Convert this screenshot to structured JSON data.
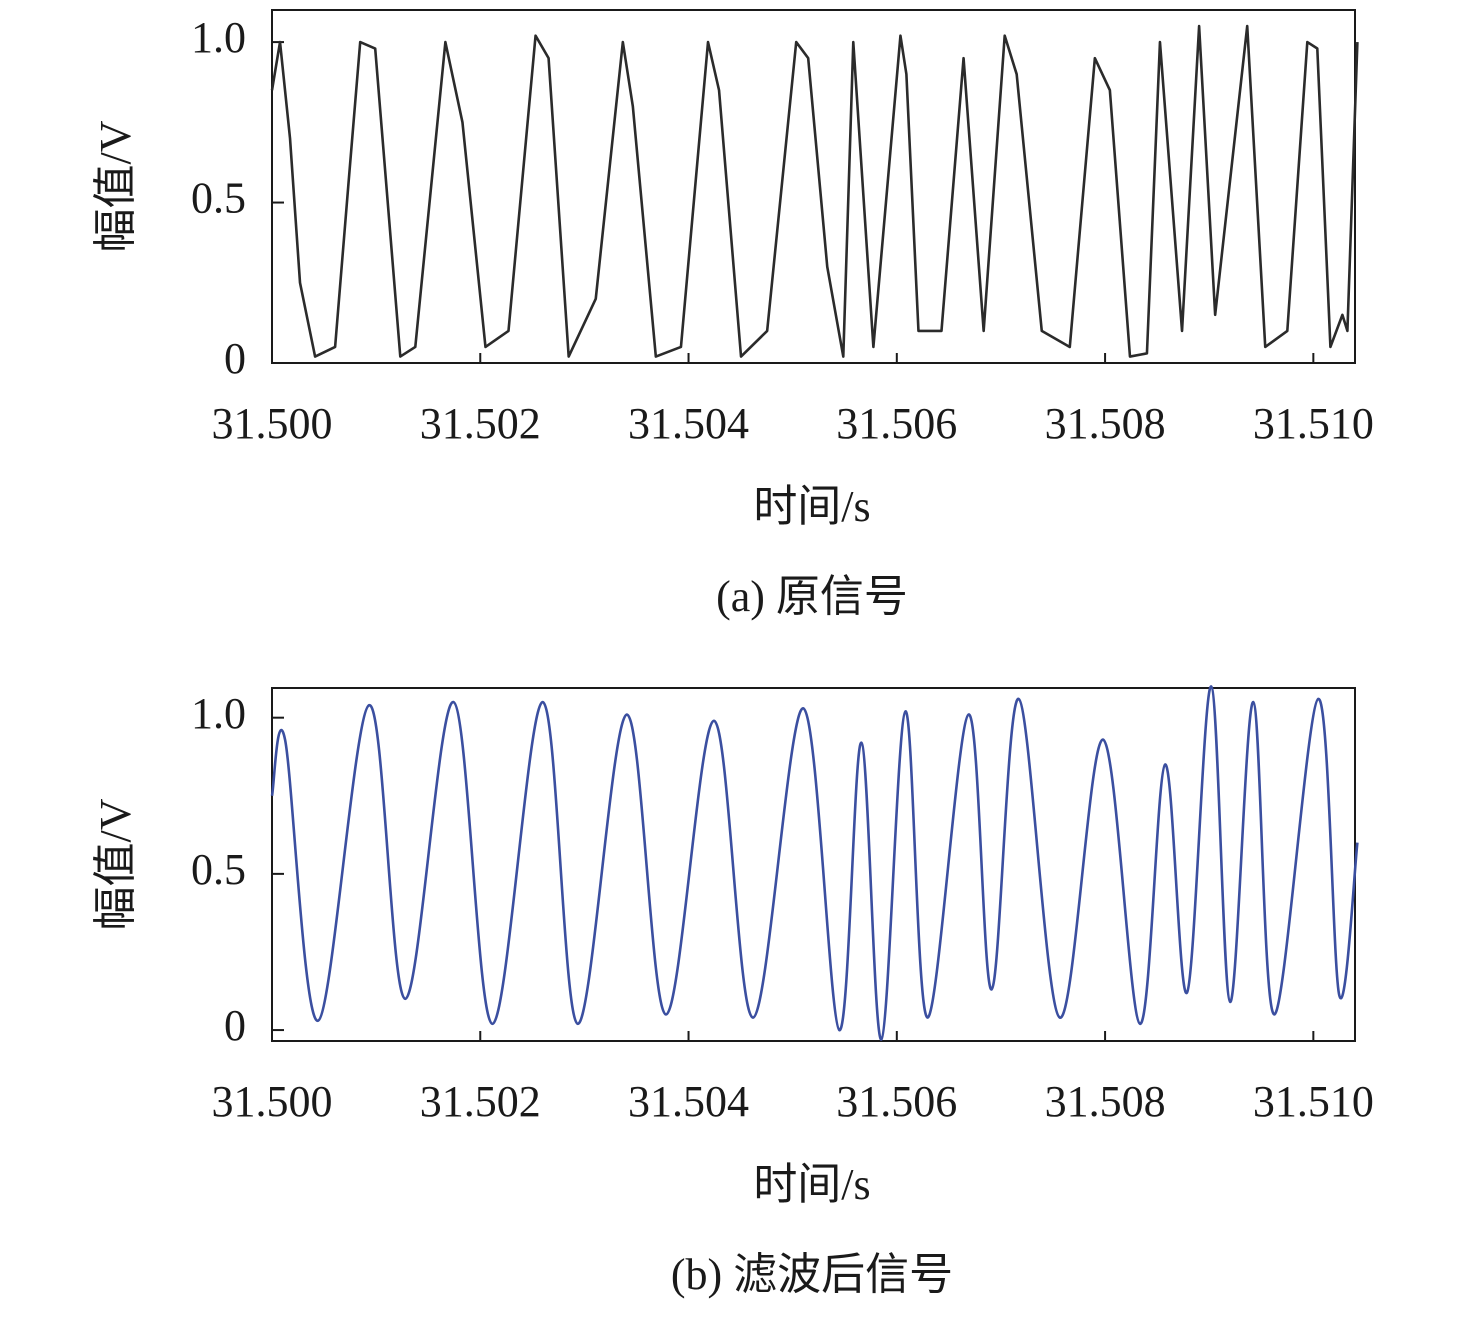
{
  "chart_data": [
    {
      "type": "line",
      "caption": "(a) 原信号",
      "xlabel": "时间/s",
      "ylabel": "幅值/V",
      "color": "#2b2b2b",
      "x": [
        31.5,
        31.500077,
        31.500173,
        31.500269,
        31.500414,
        31.500606,
        31.500732,
        31.500847,
        31.500991,
        31.501232,
        31.501376,
        31.501665,
        31.501829,
        31.50205,
        31.502271,
        31.502531,
        31.502656,
        31.502849,
        31.503109,
        31.503369,
        31.503465,
        31.503686,
        31.503927,
        31.504187,
        31.504293,
        31.504504,
        31.504755,
        31.505034,
        31.505149,
        31.505332,
        31.505486,
        31.505582,
        31.505775,
        31.506035,
        31.506092,
        31.506208,
        31.506429,
        31.506641,
        31.506834,
        31.507036,
        31.507151,
        31.507392,
        31.507661,
        31.507902,
        31.508046,
        31.508239,
        31.508402,
        31.508527,
        31.508739,
        31.508903,
        31.509057,
        31.509365,
        31.509538,
        31.50975,
        31.509942,
        31.510038,
        31.510164,
        31.510279,
        31.510327,
        31.510423
      ],
      "values": [
        0.85,
        1.0,
        0.7,
        0.25,
        0.02,
        0.05,
        0.55,
        1.0,
        0.98,
        0.02,
        0.05,
        1.0,
        0.75,
        0.05,
        0.1,
        1.02,
        0.95,
        0.02,
        0.2,
        1.0,
        0.8,
        0.02,
        0.05,
        1.0,
        0.85,
        0.02,
        0.1,
        1.0,
        0.95,
        0.3,
        0.02,
        1.0,
        0.05,
        1.02,
        0.9,
        0.1,
        0.1,
        0.95,
        0.1,
        1.02,
        0.9,
        0.1,
        0.05,
        0.95,
        0.85,
        0.02,
        0.03,
        1.0,
        0.1,
        1.05,
        0.15,
        1.05,
        0.05,
        0.1,
        1.0,
        0.98,
        0.05,
        0.15,
        0.1,
        1.0
      ],
      "xlim": [
        31.5,
        31.5104
      ],
      "ylim": [
        0,
        1.1
      ],
      "xticks": [
        {
          "value": 31.5,
          "label": "31.500"
        },
        {
          "value": 31.502,
          "label": "31.502"
        },
        {
          "value": 31.504,
          "label": "31.504"
        },
        {
          "value": 31.506,
          "label": "31.506"
        },
        {
          "value": 31.508,
          "label": "31.508"
        },
        {
          "value": 31.51,
          "label": "31.510"
        }
      ],
      "yticks": [
        0,
        0.5,
        {
          "value": 1,
          "label": "1.0"
        }
      ]
    },
    {
      "type": "line",
      "caption": "(b) 滤波后信号",
      "xlabel": "时间/s",
      "ylabel": "幅值/V",
      "color": "#3b4fa0",
      "x": [
        31.5,
        31.500125,
        31.500443,
        31.500934,
        31.50128,
        31.501742,
        31.502117,
        31.502599,
        31.502936,
        31.503407,
        31.503783,
        31.504244,
        31.50462,
        31.505101,
        31.505448,
        31.505659,
        31.505852,
        31.506083,
        31.506295,
        31.506689,
        31.50691,
        31.50717,
        31.507565,
        31.507979,
        31.508335,
        31.508576,
        31.508787,
        31.509018,
        31.509201,
        31.509423,
        31.509625,
        31.510048,
        31.51025,
        31.510423
      ],
      "values": [
        0.75,
        0.93,
        0.03,
        1.04,
        0.1,
        1.05,
        0.02,
        1.05,
        0.02,
        1.01,
        0.05,
        0.99,
        0.04,
        1.03,
        0.0,
        0.92,
        -0.03,
        1.02,
        0.04,
        1.01,
        0.13,
        1.06,
        0.04,
        0.93,
        0.02,
        0.85,
        0.12,
        1.1,
        0.09,
        1.05,
        0.05,
        1.06,
        0.11,
        0.6
      ],
      "xlim": [
        31.5,
        31.5104
      ],
      "ylim": [
        -0.035,
        1.095
      ],
      "xticks": [
        {
          "value": 31.5,
          "label": "31.500"
        },
        {
          "value": 31.502,
          "label": "31.502"
        },
        {
          "value": 31.504,
          "label": "31.504"
        },
        {
          "value": 31.506,
          "label": "31.506"
        },
        {
          "value": 31.508,
          "label": "31.508"
        },
        {
          "value": 31.51,
          "label": "31.510"
        }
      ],
      "yticks": [
        0,
        0.5,
        {
          "value": 1,
          "label": "1.0"
        }
      ]
    }
  ]
}
